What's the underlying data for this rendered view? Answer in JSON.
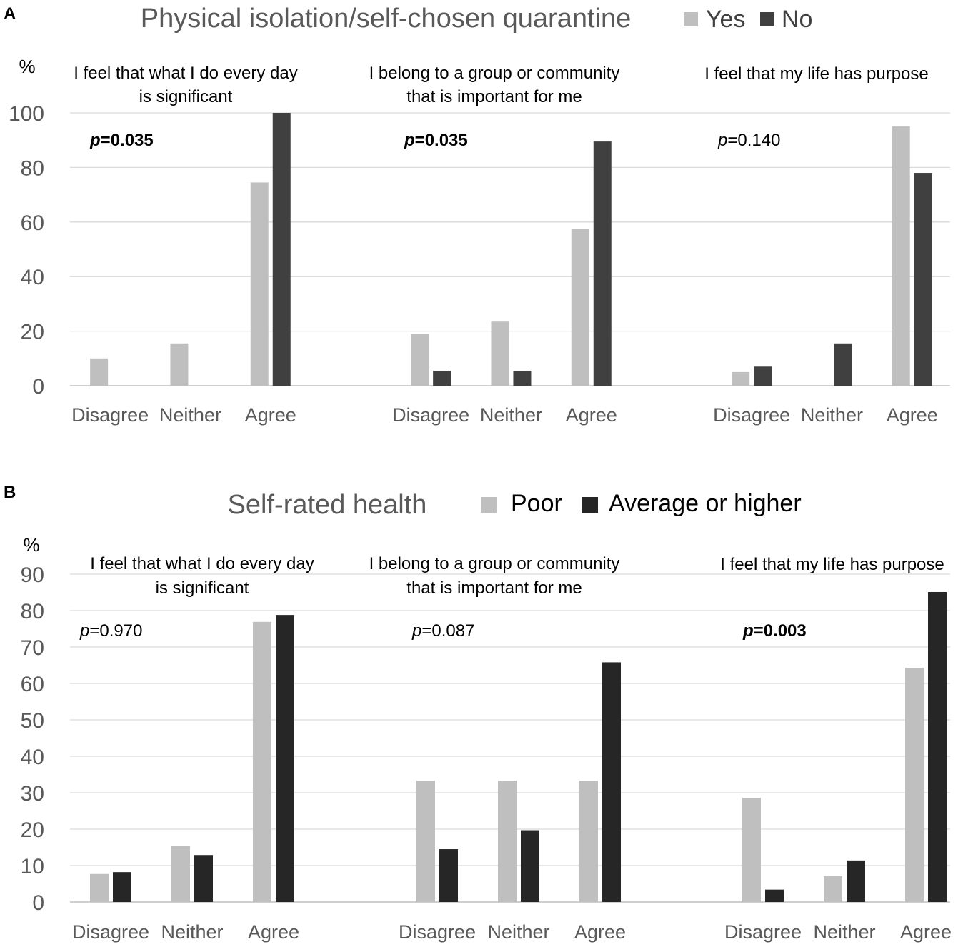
{
  "chart_data": [
    {
      "type": "bar",
      "panel": "A",
      "title": "Physical isolation/self-chosen quarantine",
      "ylabel": "%",
      "ylim": [
        0,
        100
      ],
      "yticks": [
        0,
        20,
        40,
        60,
        80,
        100
      ],
      "categories": [
        "Disagree",
        "Neither",
        "Agree"
      ],
      "legend": [
        {
          "name": "Yes",
          "color": "#bfbfbf"
        },
        {
          "name": "No",
          "color": "#404040"
        }
      ],
      "groups": [
        {
          "title_lines": [
            "I feel that what I do every day",
            "is significant"
          ],
          "p_prefix": "p",
          "p_value": "=0.035",
          "p_bold": true,
          "series": [
            {
              "name": "Yes",
              "values": [
                10,
                15.5,
                74.5
              ]
            },
            {
              "name": "No",
              "values": [
                0,
                0,
                100
              ]
            }
          ]
        },
        {
          "title_lines": [
            "I belong to a group or community",
            "that is important for me"
          ],
          "p_prefix": "p",
          "p_value": "=0.035",
          "p_bold": true,
          "series": [
            {
              "name": "Yes",
              "values": [
                19,
                23.5,
                57.5
              ]
            },
            {
              "name": "No",
              "values": [
                5.5,
                5.5,
                89.5
              ]
            }
          ]
        },
        {
          "title_lines": [
            "I feel that my life has purpose"
          ],
          "p_prefix": "p",
          "p_value": "=0.140",
          "p_bold": false,
          "series": [
            {
              "name": "Yes",
              "values": [
                5,
                0,
                95
              ]
            },
            {
              "name": "No",
              "values": [
                7,
                15.5,
                78
              ]
            }
          ]
        }
      ]
    },
    {
      "type": "bar",
      "panel": "B",
      "title": "Self-rated health",
      "ylabel": "%",
      "ylim": [
        0,
        90
      ],
      "yticks": [
        0,
        10,
        20,
        30,
        40,
        50,
        60,
        70,
        80,
        90
      ],
      "categories": [
        "Disagree",
        "Neither",
        "Agree"
      ],
      "legend": [
        {
          "name": "Poor",
          "color": "#bfbfbf"
        },
        {
          "name": "Average or higher",
          "color": "#262626"
        }
      ],
      "groups": [
        {
          "title_lines": [
            "I feel that what I do every day",
            "is significant"
          ],
          "p_prefix": "p",
          "p_value": "=0.970",
          "p_bold": false,
          "series": [
            {
              "name": "Poor",
              "values": [
                7.7,
                15.4,
                76.9
              ]
            },
            {
              "name": "Average or higher",
              "values": [
                8.2,
                12.9,
                78.8
              ]
            }
          ]
        },
        {
          "title_lines": [
            "I belong to a group or community",
            "that is important for me"
          ],
          "p_prefix": "p",
          "p_value": "=0.087",
          "p_bold": false,
          "series": [
            {
              "name": "Poor",
              "values": [
                33.3,
                33.3,
                33.3
              ]
            },
            {
              "name": "Average or higher",
              "values": [
                14.5,
                19.7,
                65.8
              ]
            }
          ]
        },
        {
          "title_lines": [
            "I feel that my life has purpose"
          ],
          "p_prefix": "p",
          "p_value": "=0.003",
          "p_bold": true,
          "series": [
            {
              "name": "Poor",
              "values": [
                28.6,
                7.1,
                64.3
              ]
            },
            {
              "name": "Average or higher",
              "values": [
                3.4,
                11.4,
                85.1
              ]
            }
          ]
        }
      ]
    }
  ]
}
